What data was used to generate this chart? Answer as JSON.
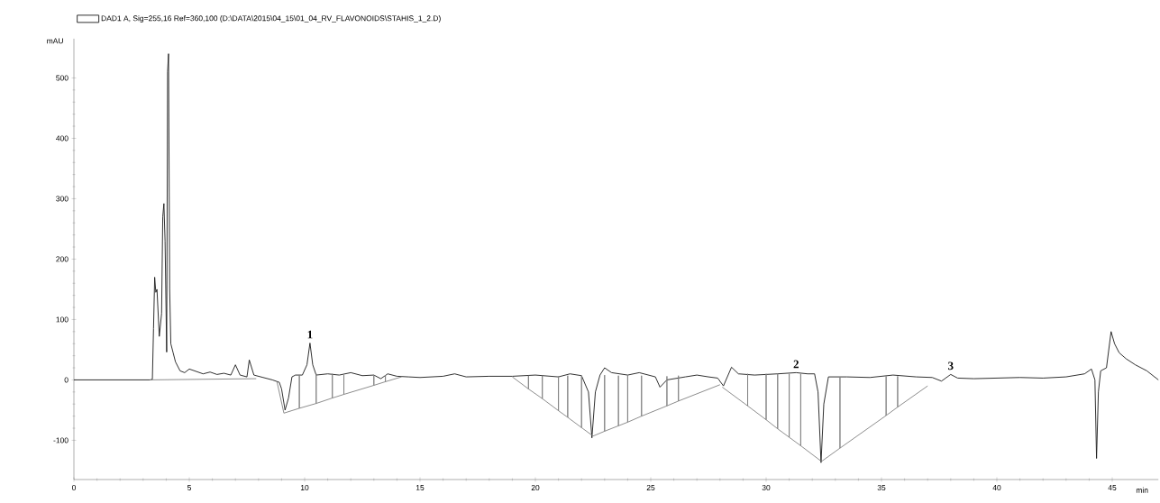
{
  "chart_data": {
    "type": "line",
    "xlabel": "min",
    "ylabel": "mAU",
    "xlim": [
      0,
      47
    ],
    "ylim": [
      -165,
      565
    ],
    "xticks": [
      0,
      5,
      10,
      15,
      20,
      25,
      30,
      35,
      40,
      45
    ],
    "yticks": [
      -100,
      0,
      100,
      200,
      300,
      400,
      500
    ],
    "legend": "top left",
    "grid": false,
    "marker": "none",
    "line_style": "solid",
    "annotations": [
      {
        "text": "1",
        "x": 10.23,
        "y": 61
      },
      {
        "text": "2",
        "x": 31.3,
        "y": 12
      },
      {
        "text": "3",
        "x": 38.0,
        "y": 9
      }
    ],
    "series": [
      {
        "name": "DAD1 A, Sig=255,16 Ref=360,100 (D:\\DATA\\2015\\04_15\\01_04_RV_FLAVONOIDS\\STAHIS_1_2.D)",
        "color": "#1a1a1a",
        "x": [
          0,
          3.3,
          3.4,
          3.45,
          3.5,
          3.55,
          3.6,
          3.7,
          3.8,
          3.85,
          3.9,
          3.95,
          4.02,
          4.06,
          4.1,
          4.15,
          4.2,
          4.3,
          4.4,
          4.6,
          4.8,
          5.0,
          5.3,
          5.6,
          5.9,
          6.2,
          6.5,
          6.8,
          7.0,
          7.2,
          7.5,
          7.6,
          7.8,
          8.2,
          8.6,
          8.9,
          9.0,
          9.15,
          9.3,
          9.45,
          9.6,
          9.9,
          10.1,
          10.23,
          10.35,
          10.5,
          11.0,
          11.5,
          12.0,
          12.5,
          13.0,
          13.3,
          13.6,
          14.0,
          14.5,
          15.0,
          16.0,
          16.5,
          17.0,
          18.0,
          19.0,
          20.0,
          21.0,
          21.5,
          22.0,
          22.3,
          22.45,
          22.6,
          22.8,
          23.0,
          23.3,
          24.0,
          24.5,
          25.2,
          25.4,
          25.7,
          26.5,
          27.0,
          27.5,
          27.9,
          28.15,
          28.5,
          28.8,
          29.5,
          30.5,
          31.3,
          31.8,
          32.1,
          32.25,
          32.38,
          32.5,
          32.7,
          33.5,
          34.5,
          35.5,
          36.5,
          37.2,
          37.6,
          38.0,
          38.3,
          39.0,
          40.0,
          41.0,
          42.0,
          43.0,
          43.8,
          44.1,
          44.25,
          44.32,
          44.4,
          44.5,
          44.75,
          44.95,
          45.1,
          45.3,
          45.6,
          46.0,
          46.5,
          47.0
        ],
        "values": [
          0,
          0,
          1,
          85,
          170,
          145,
          150,
          72,
          110,
          270,
          292,
          230,
          46,
          510,
          540,
          150,
          60,
          45,
          30,
          15,
          12,
          18,
          14,
          10,
          13,
          9,
          11,
          8,
          25,
          8,
          5,
          33,
          8,
          4,
          0,
          -4,
          -15,
          -50,
          -30,
          5,
          8,
          8,
          25,
          61,
          25,
          8,
          10,
          8,
          12,
          7,
          8,
          2,
          10,
          6,
          5,
          4,
          6,
          10,
          5,
          6,
          6,
          8,
          5,
          10,
          7,
          -20,
          -96,
          -20,
          8,
          20,
          12,
          8,
          12,
          5,
          -12,
          0,
          5,
          8,
          5,
          3,
          -10,
          21,
          10,
          8,
          10,
          12,
          10,
          10,
          -20,
          -137,
          -40,
          5,
          5,
          4,
          8,
          5,
          4,
          -2,
          9,
          3,
          2,
          3,
          4,
          3,
          5,
          10,
          18,
          0,
          -130,
          -20,
          15,
          20,
          80,
          60,
          45,
          35,
          25,
          15,
          0
        ]
      },
      {
        "color": "#808080",
        "x": [
          3.3,
          7.9,
          8.5,
          8.8,
          9.1,
          9.77,
          9.77,
          9.77,
          10.5,
          10.5,
          10.5,
          11.2,
          11.2,
          11.2,
          11.7,
          11.7,
          11.7,
          13.0,
          13.0,
          13.0,
          13.5,
          13.5,
          13.5,
          14.2,
          16.0,
          19.0,
          19.7,
          19.7,
          19.7,
          20.3,
          20.3,
          20.3,
          21.0,
          21.0,
          21.0,
          21.4,
          21.4,
          21.4,
          22.0,
          22.0,
          22.0,
          22.5,
          23.0,
          23.0,
          23.0,
          23.6,
          23.6,
          23.6,
          24.0,
          24.0,
          24.0,
          24.6,
          24.6,
          24.6,
          25.7,
          25.7,
          25.7,
          26.2,
          26.2,
          26.2,
          28.0,
          28.05,
          28.1,
          29.2,
          29.2,
          29.2,
          30.0,
          30.0,
          30.0,
          30.5,
          30.5,
          30.5,
          31.0,
          31.0,
          31.0,
          31.5,
          31.5,
          31.5,
          32.4,
          33.2,
          33.2,
          33.2,
          35.2,
          35.2,
          35.2,
          35.7,
          35.7,
          35.7,
          37.0
        ],
        "values": [
          0,
          2,
          null,
          -3,
          -55,
          -47,
          8,
          -47,
          -39,
          10,
          -39,
          -30,
          10,
          -30,
          -24,
          8,
          -24,
          -9,
          8,
          -9,
          -3,
          8,
          -3,
          5,
          null,
          5,
          -15,
          7,
          -15,
          -31,
          7,
          -31,
          -51,
          6,
          -51,
          -62,
          7,
          -62,
          -79,
          7,
          -79,
          -93,
          -85,
          8,
          -85,
          -76,
          7,
          -76,
          -70,
          8,
          -70,
          -60,
          7,
          -60,
          -43,
          6,
          -43,
          -35,
          7,
          -35,
          -8,
          null,
          -12,
          -43,
          10,
          -43,
          -66,
          10,
          -66,
          -81,
          10,
          -81,
          -95,
          10,
          -95,
          -109,
          10,
          -109,
          -135,
          -113,
          5,
          -113,
          -59,
          6,
          -59,
          -45,
          6,
          -45,
          -10
        ]
      }
    ]
  }
}
